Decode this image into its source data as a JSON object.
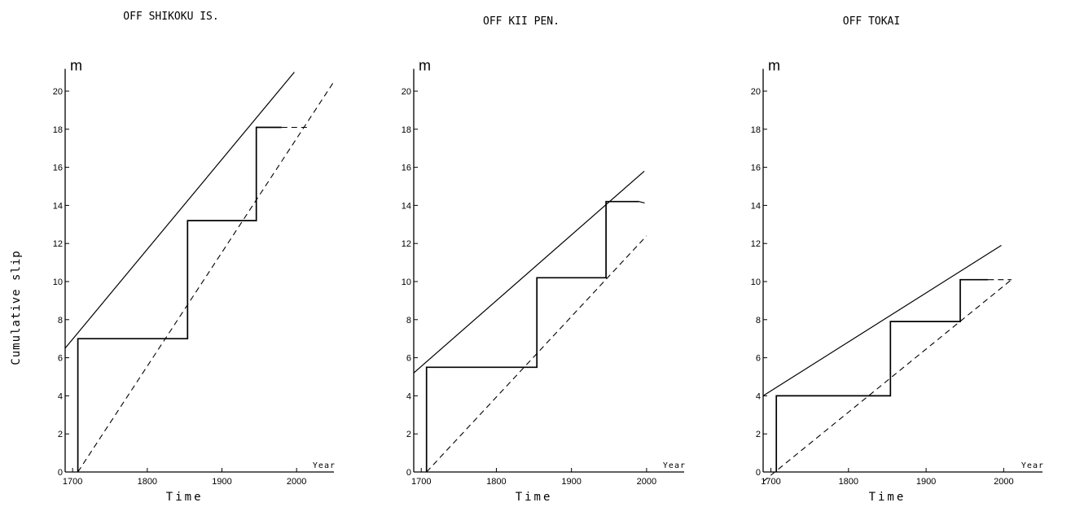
{
  "figure": {
    "ylabel": "Cumulative slip"
  },
  "chart_data": [
    {
      "type": "line",
      "title": "OFF SHIKOKU IS.",
      "xlabel": "Time",
      "x_unit": "Year",
      "y_unit": "m",
      "xlim": [
        1690,
        2050
      ],
      "ylim": [
        0,
        21
      ],
      "x_ticks": [
        1700,
        1800,
        1900,
        2000
      ],
      "y_ticks": [
        0,
        2,
        4,
        6,
        8,
        10,
        12,
        14,
        16,
        18,
        20
      ],
      "series": [
        {
          "style": "solid-step",
          "x": [
            1707,
            1707,
            1854,
            1854,
            1946,
            1946,
            1980
          ],
          "y": [
            0,
            7,
            7,
            13.2,
            13.2,
            18.1,
            18.1
          ]
        },
        {
          "style": "dashed",
          "x": [
            1980,
            2015
          ],
          "y": [
            18.1,
            18.1
          ]
        },
        {
          "style": "solid",
          "x": [
            1690,
            1997
          ],
          "y": [
            6.5,
            21
          ]
        },
        {
          "style": "dashed",
          "x": [
            1707,
            2050
          ],
          "y": [
            0,
            20.5
          ]
        }
      ]
    },
    {
      "type": "line",
      "title": "OFF KII PEN.",
      "xlabel": "Time",
      "x_unit": "Year",
      "y_unit": "m",
      "xlim": [
        1690,
        2050
      ],
      "ylim": [
        0,
        21
      ],
      "x_ticks": [
        1700,
        1800,
        1900,
        2000
      ],
      "y_ticks": [
        0,
        2,
        4,
        6,
        8,
        10,
        12,
        14,
        16,
        18,
        20
      ],
      "series": [
        {
          "style": "solid-step",
          "x": [
            1707,
            1707,
            1854,
            1854,
            1946,
            1946,
            1990
          ],
          "y": [
            0,
            5.5,
            5.5,
            10.2,
            10.2,
            14.2,
            14.2
          ]
        },
        {
          "style": "dashed",
          "x": [
            1990,
            2000
          ],
          "y": [
            14.2,
            14.1
          ]
        },
        {
          "style": "solid",
          "x": [
            1690,
            1997
          ],
          "y": [
            5.2,
            15.8
          ]
        },
        {
          "style": "dashed",
          "x": [
            1707,
            2000
          ],
          "y": [
            0,
            12.4
          ]
        }
      ]
    },
    {
      "type": "line",
      "title": "OFF TOKAI",
      "xlabel": "Time",
      "x_unit": "Year",
      "y_unit": "m",
      "xlim": [
        1690,
        2050
      ],
      "ylim": [
        0,
        21
      ],
      "x_ticks": [
        1700,
        1800,
        1900,
        2000
      ],
      "y_ticks": [
        0,
        2,
        4,
        6,
        8,
        10,
        12,
        14,
        16,
        18,
        20
      ],
      "series": [
        {
          "style": "solid-step",
          "x": [
            1707,
            1707,
            1854,
            1854,
            1944,
            1944,
            1980
          ],
          "y": [
            0,
            4,
            4,
            7.9,
            7.9,
            10.1,
            10.1
          ]
        },
        {
          "style": "dashed",
          "x": [
            1980,
            2010
          ],
          "y": [
            10.1,
            10.1
          ]
        },
        {
          "style": "solid",
          "x": [
            1690,
            1997
          ],
          "y": [
            4,
            11.9
          ]
        },
        {
          "style": "dashed",
          "x": [
            1690,
            2010
          ],
          "y": [
            -0.5,
            10.1
          ]
        }
      ]
    }
  ]
}
